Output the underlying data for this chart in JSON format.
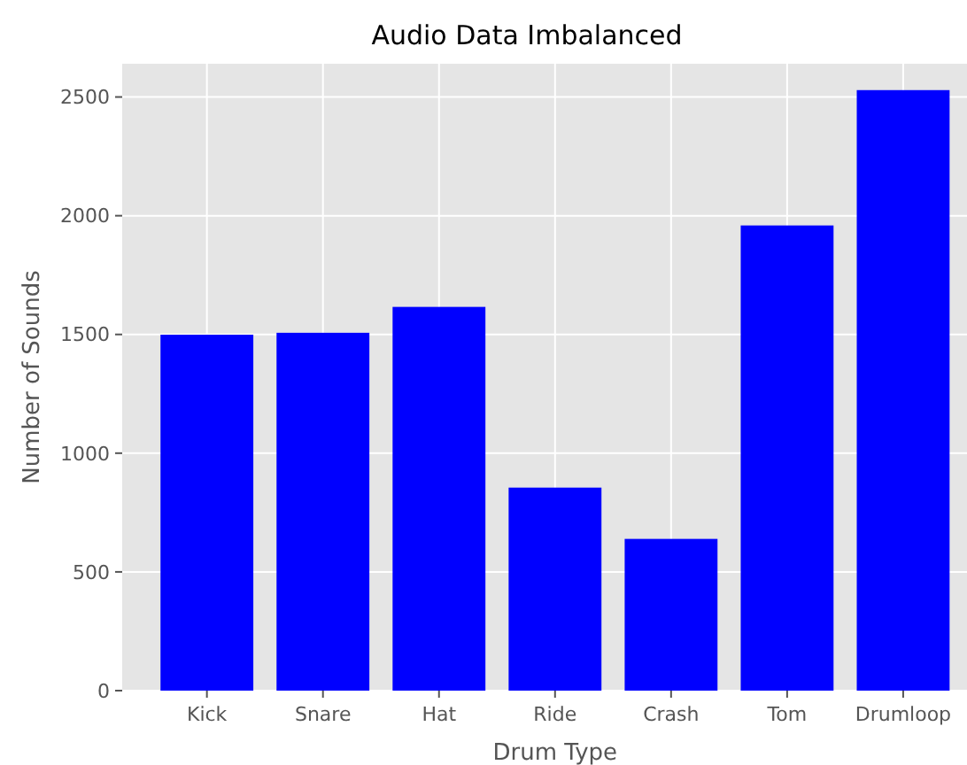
{
  "chart_data": {
    "type": "bar",
    "title": "Audio Data Imbalanced",
    "xlabel": "Drum Type",
    "ylabel": "Number of Sounds",
    "categories": [
      "Kick",
      "Snare",
      "Hat",
      "Ride",
      "Crash",
      "Tom",
      "Drumloop"
    ],
    "values": [
      1499,
      1507,
      1616,
      855,
      639,
      1959,
      2529
    ],
    "color": "#0000ff",
    "ylim": [
      0,
      2640
    ],
    "yticks": [
      0,
      500,
      1000,
      1500,
      2000,
      2500
    ],
    "grid": true
  }
}
